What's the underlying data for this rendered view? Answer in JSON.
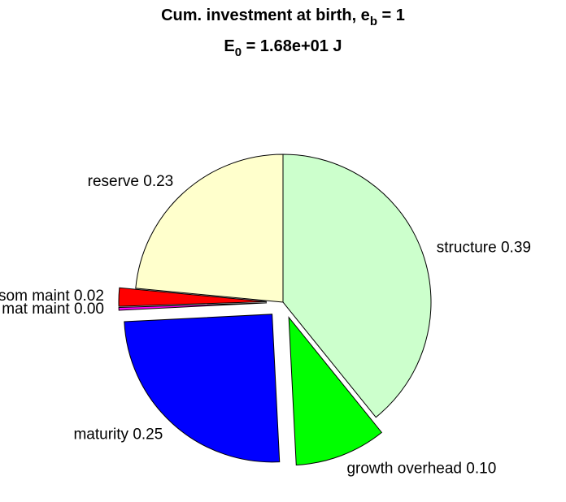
{
  "chart_data": {
    "type": "pie",
    "title": [
      "Cum. investment at birth, e",
      "b",
      " = 1"
    ],
    "subtitle": [
      "E",
      "0",
      " = 1.68e+01 J"
    ],
    "categories": [
      "structure",
      "growth overhead",
      "maturity",
      "mat maint",
      "som maint",
      "reserve"
    ],
    "values": [
      0.392,
      0.1,
      0.25,
      0.003,
      0.02,
      0.235
    ],
    "value_labels": [
      "0.39",
      "0.10",
      "0.25",
      "0.00",
      "0.02",
      "0.23"
    ],
    "colors": [
      "#ccffcc",
      "#00ff00",
      "#0000ff",
      "#ff00ff",
      "#ff0000",
      "#ffffcc"
    ],
    "explode": [
      0,
      1,
      1,
      1,
      1,
      0
    ]
  }
}
